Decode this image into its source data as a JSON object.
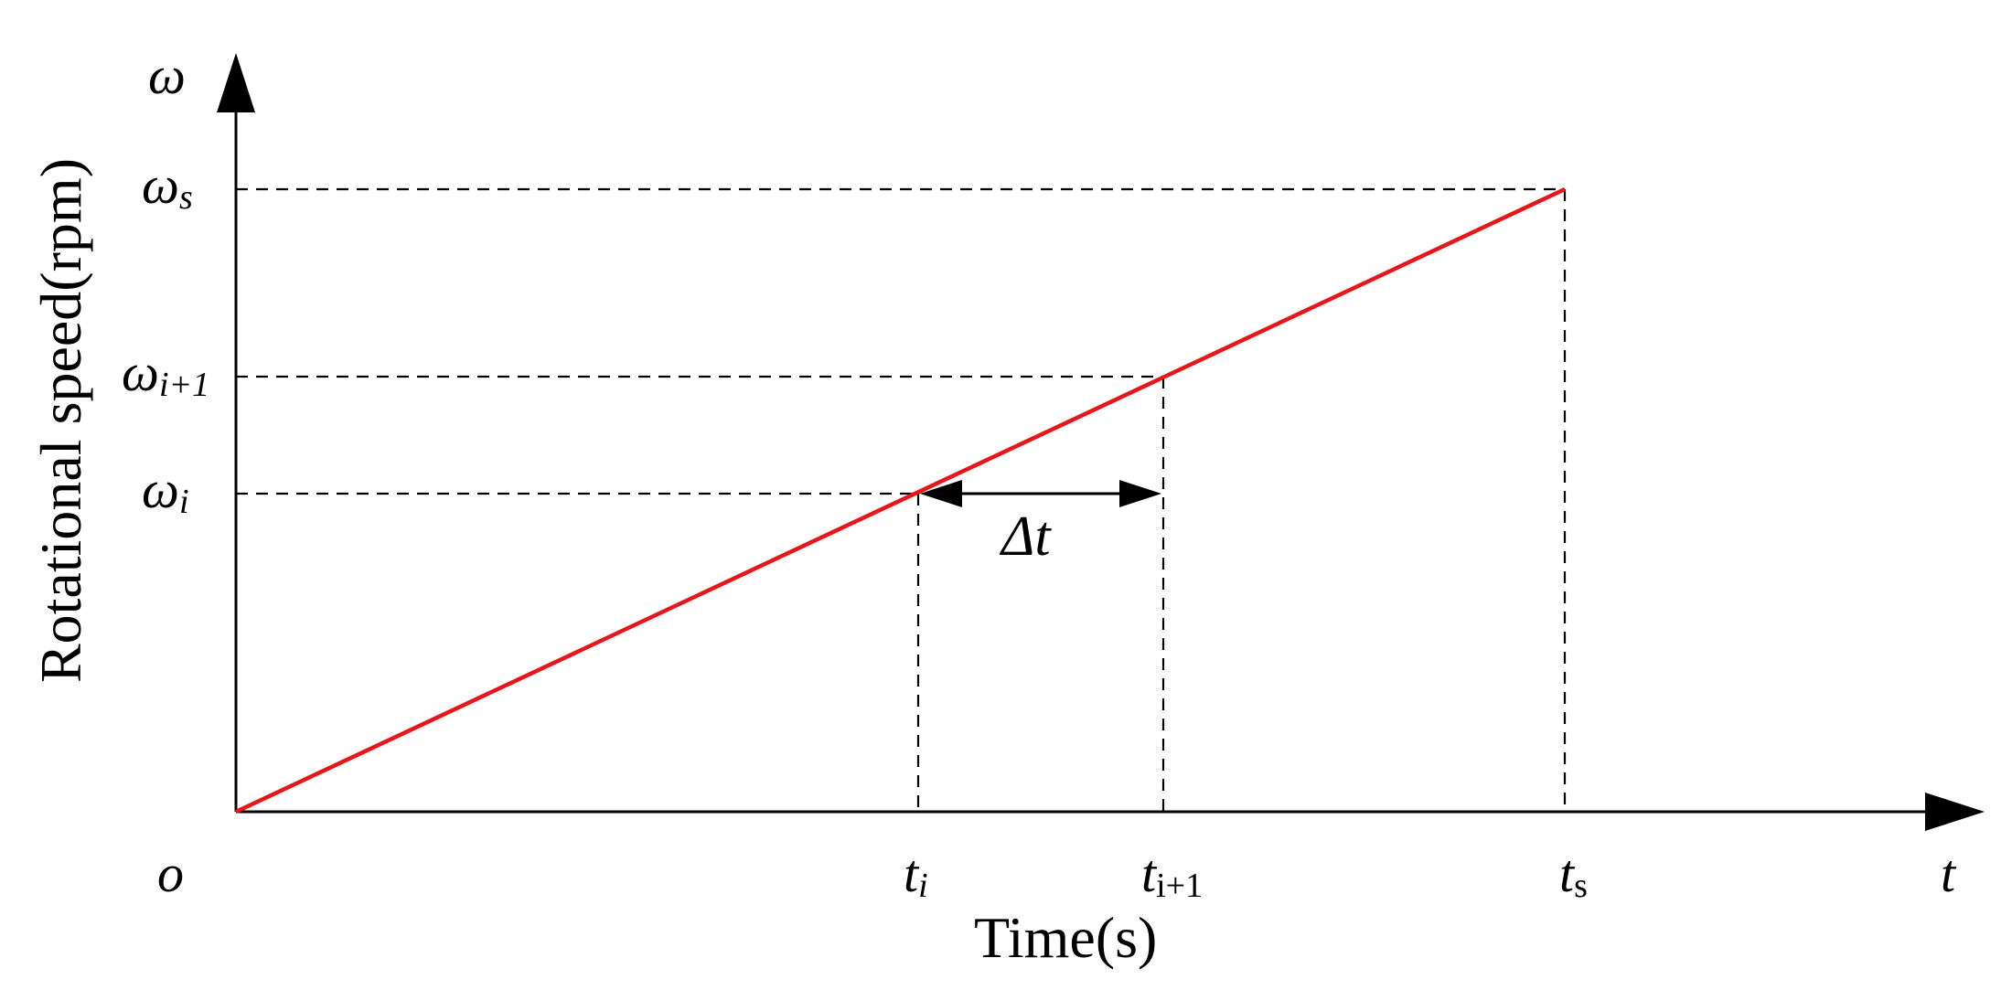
{
  "colors": {
    "ramp_line": "#e8161b",
    "axes": "#000000",
    "guides": "#000000"
  },
  "axes": {
    "x_title": "Time(s)",
    "y_title": "Rotational speed(rpm)",
    "x_symbol": "t",
    "y_symbol": "ω",
    "origin": "o"
  },
  "x_ticks": [
    {
      "base": "t",
      "sub": "i"
    },
    {
      "base": "t",
      "sub": "i+1"
    },
    {
      "base": "t",
      "sub": "s"
    }
  ],
  "y_ticks": [
    {
      "base": "ω",
      "sub": "s"
    },
    {
      "base": "ω",
      "sub": "i+1"
    },
    {
      "base": "ω",
      "sub": "i"
    }
  ],
  "interval_label": {
    "delta": "Δ",
    "var": "t"
  },
  "chart_data": {
    "type": "line",
    "series": [
      {
        "x": [
          0,
          1
        ],
        "y": [
          0,
          1
        ]
      }
    ],
    "marked_points": [
      "i",
      "i+1",
      "s"
    ],
    "grid": false
  }
}
